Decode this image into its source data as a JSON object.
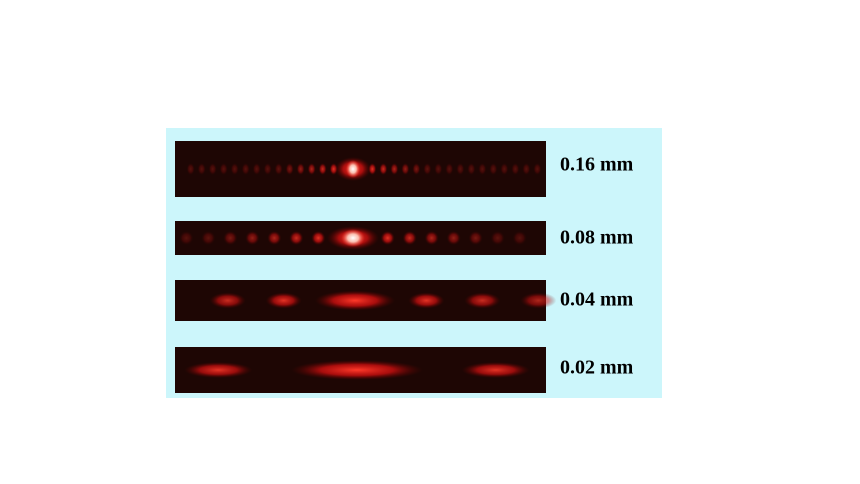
{
  "patterns": [
    {
      "label": "0.16 mm"
    },
    {
      "label": "0.08 mm"
    },
    {
      "label": "0.04 mm"
    },
    {
      "label": "0.02 mm"
    }
  ]
}
